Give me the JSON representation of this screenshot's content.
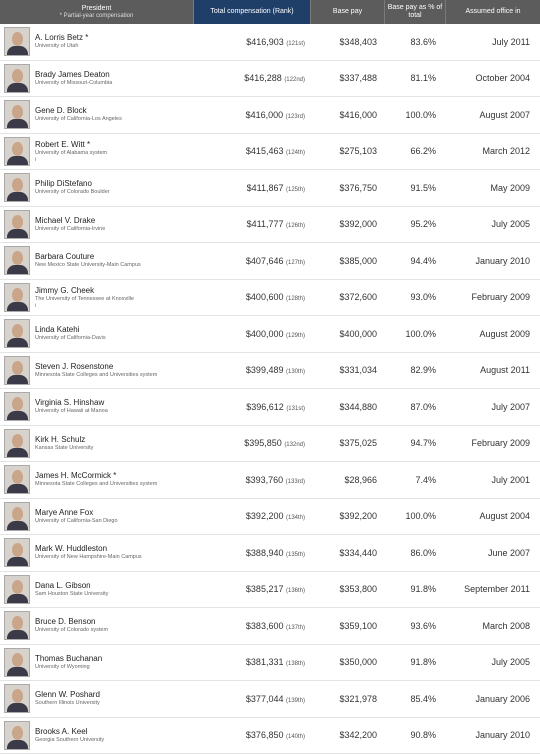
{
  "header": {
    "president": "President",
    "president_note": "* Partial-year compensation",
    "total": "Total compensation (Rank)",
    "base": "Base pay",
    "pct": "Base pay as % of total",
    "date": "Assumed office in"
  },
  "rows": [
    {
      "name": "A. Lorris Betz *",
      "uni": "University of Utah",
      "mark": "",
      "total": "$416,903",
      "rank": "(121st)",
      "base": "$348,403",
      "pct": "83.6%",
      "date": "July 2011"
    },
    {
      "name": "Brady James Deaton",
      "uni": "University of Missouri-Columbia",
      "mark": "",
      "total": "$416,288",
      "rank": "(122nd)",
      "base": "$337,488",
      "pct": "81.1%",
      "date": "October 2004"
    },
    {
      "name": "Gene D. Block",
      "uni": "University of California-Los Angeles",
      "mark": "",
      "total": "$416,000",
      "rank": "(123rd)",
      "base": "$416,000",
      "pct": "100.0%",
      "date": "August 2007"
    },
    {
      "name": "Robert E. Witt *",
      "uni": "University of Alabama system",
      "mark": "i",
      "total": "$415,463",
      "rank": "(124th)",
      "base": "$275,103",
      "pct": "66.2%",
      "date": "March 2012"
    },
    {
      "name": "Philip DiStefano",
      "uni": "University of Colorado Boulder",
      "mark": "",
      "total": "$411,867",
      "rank": "(125th)",
      "base": "$376,750",
      "pct": "91.5%",
      "date": "May 2009"
    },
    {
      "name": "Michael V. Drake",
      "uni": "University of California-Irvine",
      "mark": "",
      "total": "$411,777",
      "rank": "(126th)",
      "base": "$392,000",
      "pct": "95.2%",
      "date": "July 2005"
    },
    {
      "name": "Barbara Couture",
      "uni": "New Mexico State University-Main Campus",
      "mark": "",
      "total": "$407,646",
      "rank": "(127th)",
      "base": "$385,000",
      "pct": "94.4%",
      "date": "January 2010"
    },
    {
      "name": "Jimmy G. Cheek",
      "uni": "The University of Tennessee at Knoxville",
      "mark": "i",
      "total": "$400,600",
      "rank": "(128th)",
      "base": "$372,600",
      "pct": "93.0%",
      "date": "February 2009"
    },
    {
      "name": "Linda Katehi",
      "uni": "University of California-Davis",
      "mark": "",
      "total": "$400,000",
      "rank": "(129th)",
      "base": "$400,000",
      "pct": "100.0%",
      "date": "August 2009"
    },
    {
      "name": "Steven J. Rosenstone",
      "uni": "Minnesota State Colleges and Universities system",
      "mark": "",
      "total": "$399,489",
      "rank": "(130th)",
      "base": "$331,034",
      "pct": "82.9%",
      "date": "August 2011"
    },
    {
      "name": "Virginia S. Hinshaw",
      "uni": "University of Hawaii at Manoa",
      "mark": "",
      "total": "$396,612",
      "rank": "(131st)",
      "base": "$344,880",
      "pct": "87.0%",
      "date": "July 2007"
    },
    {
      "name": "Kirk H. Schulz",
      "uni": "Kansas State University",
      "mark": "",
      "total": "$395,850",
      "rank": "(132nd)",
      "base": "$375,025",
      "pct": "94.7%",
      "date": "February 2009"
    },
    {
      "name": "James H. McCormick *",
      "uni": "Minnesota State Colleges and Universities system",
      "mark": "",
      "total": "$393,760",
      "rank": "(133rd)",
      "base": "$28,966",
      "pct": "7.4%",
      "date": "July 2001"
    },
    {
      "name": "Marye Anne Fox",
      "uni": "University of California-San Diego",
      "mark": "",
      "total": "$392,200",
      "rank": "(134th)",
      "base": "$392,200",
      "pct": "100.0%",
      "date": "August 2004"
    },
    {
      "name": "Mark W. Huddleston",
      "uni": "University of New Hampshire-Main Campus",
      "mark": "",
      "total": "$388,940",
      "rank": "(135th)",
      "base": "$334,440",
      "pct": "86.0%",
      "date": "June 2007"
    },
    {
      "name": "Dana L. Gibson",
      "uni": "Sam Houston State University",
      "mark": "",
      "total": "$385,217",
      "rank": "(136th)",
      "base": "$353,800",
      "pct": "91.8%",
      "date": "September 2011"
    },
    {
      "name": "Bruce D. Benson",
      "uni": "University of Colorado system",
      "mark": "",
      "total": "$383,600",
      "rank": "(137th)",
      "base": "$359,100",
      "pct": "93.6%",
      "date": "March 2008"
    },
    {
      "name": "Thomas Buchanan",
      "uni": "University of Wyoming",
      "mark": "",
      "total": "$381,331",
      "rank": "(138th)",
      "base": "$350,000",
      "pct": "91.8%",
      "date": "July 2005"
    },
    {
      "name": "Glenn W. Poshard",
      "uni": "Southern Illinois University",
      "mark": "",
      "total": "$377,044",
      "rank": "(139th)",
      "base": "$321,978",
      "pct": "85.4%",
      "date": "January 2006"
    },
    {
      "name": "Brooks A. Keel",
      "uni": "Georgia Southern University",
      "mark": "",
      "total": "$376,850",
      "rank": "(140th)",
      "base": "$342,200",
      "pct": "90.8%",
      "date": "January 2010"
    }
  ],
  "colors": {
    "header_bg": "#5c5c5c",
    "header_accent": "#1f3f68"
  }
}
